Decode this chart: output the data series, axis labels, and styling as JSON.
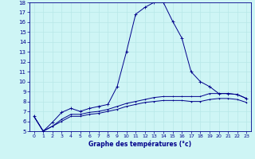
{
  "xlabel": "Graphe des températures (°c)",
  "background_color": "#cef5f5",
  "line_color": "#00008b",
  "grid_color": "#b8e8e8",
  "xlim": [
    -0.5,
    23.5
  ],
  "ylim": [
    5,
    18
  ],
  "yticks": [
    5,
    6,
    7,
    8,
    9,
    10,
    11,
    12,
    13,
    14,
    15,
    16,
    17,
    18
  ],
  "xticks": [
    0,
    1,
    2,
    3,
    4,
    5,
    6,
    7,
    8,
    9,
    10,
    11,
    12,
    13,
    14,
    15,
    16,
    17,
    18,
    19,
    20,
    21,
    22,
    23
  ],
  "series": {
    "line1_x": [
      0,
      1,
      2,
      3,
      4,
      5,
      6,
      7,
      8,
      9,
      10,
      11,
      12,
      13,
      14,
      15,
      16,
      17,
      18,
      19,
      20,
      21,
      22,
      23
    ],
    "line1_y": [
      6.5,
      5.0,
      5.9,
      6.9,
      7.3,
      7.0,
      7.3,
      7.5,
      7.7,
      9.5,
      13.0,
      16.8,
      17.5,
      18.0,
      18.0,
      16.1,
      14.4,
      11.0,
      10.0,
      9.5,
      8.8,
      8.8,
      8.7,
      8.3
    ],
    "line2_x": [
      0,
      1,
      2,
      3,
      4,
      5,
      6,
      7,
      8,
      9,
      10,
      11,
      12,
      13,
      14,
      15,
      16,
      17,
      18,
      19,
      20,
      21,
      22,
      23
    ],
    "line2_y": [
      6.5,
      5.0,
      5.5,
      6.2,
      6.7,
      6.7,
      6.9,
      7.0,
      7.2,
      7.5,
      7.8,
      8.0,
      8.2,
      8.4,
      8.5,
      8.5,
      8.5,
      8.5,
      8.5,
      8.8,
      8.8,
      8.8,
      8.7,
      8.3
    ],
    "line3_x": [
      0,
      1,
      2,
      3,
      4,
      5,
      6,
      7,
      8,
      9,
      10,
      11,
      12,
      13,
      14,
      15,
      16,
      17,
      18,
      19,
      20,
      21,
      22,
      23
    ],
    "line3_y": [
      6.5,
      5.0,
      5.5,
      6.0,
      6.5,
      6.5,
      6.7,
      6.8,
      7.0,
      7.2,
      7.5,
      7.7,
      7.9,
      8.0,
      8.1,
      8.1,
      8.1,
      8.0,
      8.0,
      8.2,
      8.3,
      8.3,
      8.2,
      7.9
    ]
  }
}
